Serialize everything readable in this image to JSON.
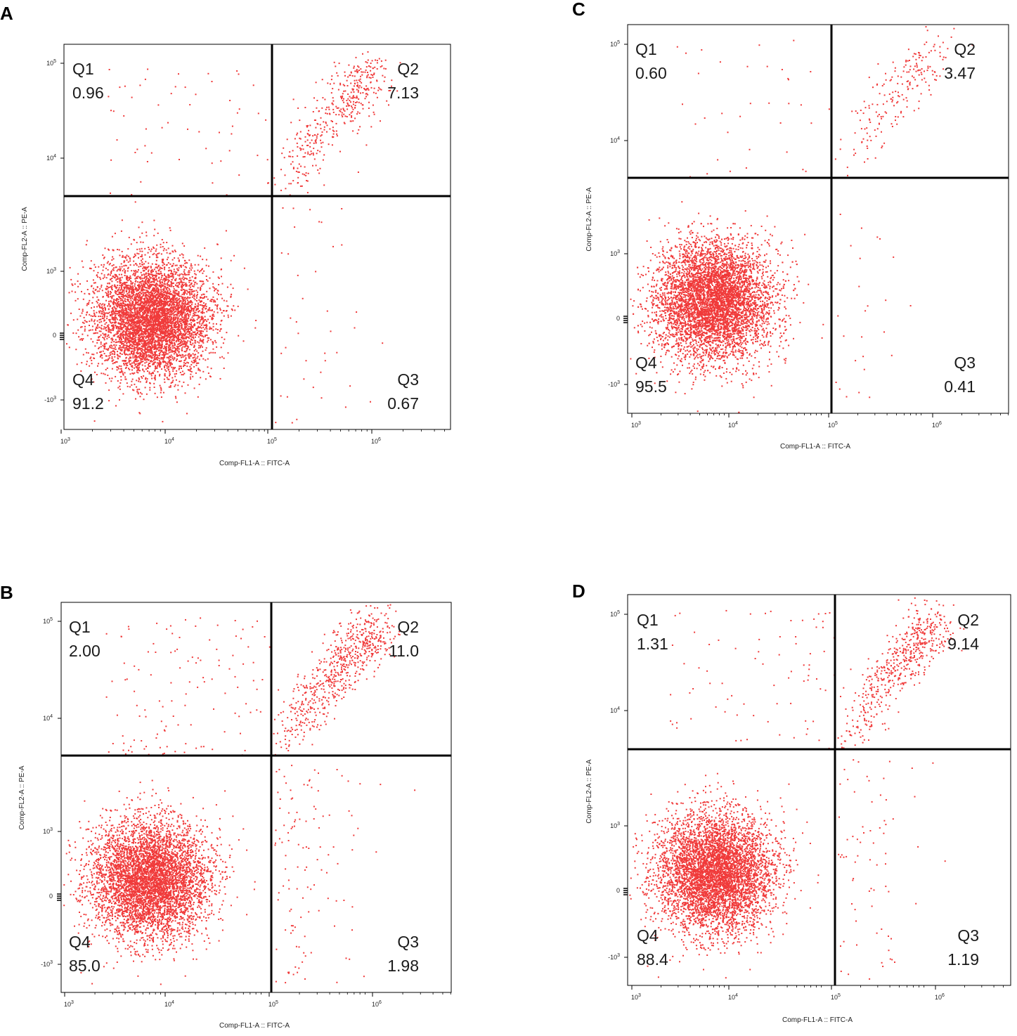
{
  "colors": {
    "dots": "#f03a3a",
    "frame": "#000000",
    "text": "#1a1a1a"
  },
  "chart_data": [
    {
      "panel": "A",
      "type": "scatter",
      "xlabel": "Comp-FL1-A :: FITC-A",
      "ylabel": "Comp-FL2-A :: PE-A",
      "x_ticks": [
        "10^3",
        "10^4",
        "10^5",
        "10^6"
      ],
      "y_ticks": [
        "10^5",
        "10^4",
        "10^3",
        "0",
        "-10^3"
      ],
      "quadrants": [
        {
          "name": "Q1",
          "value": "0.96"
        },
        {
          "name": "Q2",
          "value": "7.13"
        },
        {
          "name": "Q3",
          "value": "0.67"
        },
        {
          "name": "Q4",
          "value": "91.2"
        }
      ]
    },
    {
      "panel": "B",
      "type": "scatter",
      "xlabel": "Comp-FL1-A :: FITC-A",
      "ylabel": "Comp-FL2-A :: PE-A",
      "x_ticks": [
        "10^3",
        "10^4",
        "10^5",
        "10^6"
      ],
      "y_ticks": [
        "10^5",
        "10^4",
        "10^3",
        "0",
        "-10^3"
      ],
      "quadrants": [
        {
          "name": "Q1",
          "value": "2.00"
        },
        {
          "name": "Q2",
          "value": "11.0"
        },
        {
          "name": "Q3",
          "value": "1.98"
        },
        {
          "name": "Q4",
          "value": "85.0"
        }
      ]
    },
    {
      "panel": "C",
      "type": "scatter",
      "xlabel": "Comp-FL1-A :: FITC-A",
      "ylabel": "Comp-FL2-A :: PE-A",
      "x_ticks": [
        "10^3",
        "10^4",
        "10^5",
        "10^6"
      ],
      "y_ticks": [
        "10^5",
        "10^4",
        "10^3",
        "0",
        "-10^3"
      ],
      "quadrants": [
        {
          "name": "Q1",
          "value": "0.60"
        },
        {
          "name": "Q2",
          "value": "3.47"
        },
        {
          "name": "Q3",
          "value": "0.41"
        },
        {
          "name": "Q4",
          "value": "95.5"
        }
      ]
    },
    {
      "panel": "D",
      "type": "scatter",
      "xlabel": "Comp-FL1-A :: FITC-A",
      "ylabel": "Comp-FL2-A :: PE-A",
      "x_ticks": [
        "10^3",
        "10^4",
        "10^5",
        "10^6"
      ],
      "y_ticks": [
        "10^5",
        "10^4",
        "10^3",
        "0",
        "-10^3"
      ],
      "quadrants": [
        {
          "name": "Q1",
          "value": "1.31"
        },
        {
          "name": "Q2",
          "value": "9.14"
        },
        {
          "name": "Q3",
          "value": "1.19"
        },
        {
          "name": "Q4",
          "value": "88.4"
        }
      ]
    }
  ]
}
